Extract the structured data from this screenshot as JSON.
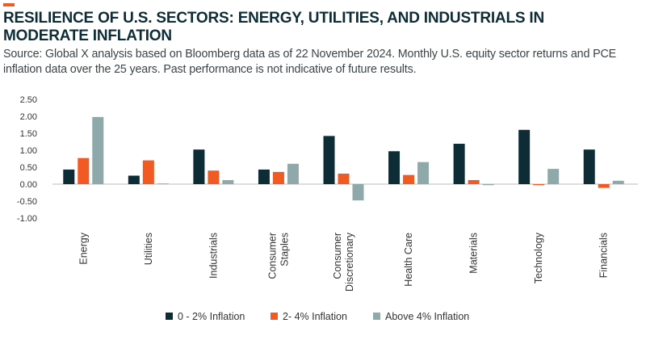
{
  "header": {
    "title": "RESILIENCE OF U.S. SECTORS: ENERGY, UTILITIES, AND INDUSTRIALS IN MODERATE INFLATION",
    "subtitle": "Source: Global X analysis based on Bloomberg data as of 22 November 2024. Monthly U.S. equity sector returns and PCE inflation data over the 25 years. Past performance is not indicative of future results."
  },
  "colors": {
    "accent": "#f15a22",
    "series": [
      "#0d2c36",
      "#f15a22",
      "#8fa9ab"
    ],
    "axis": "#bbbbbb"
  },
  "chart_data": {
    "type": "bar",
    "title": "RESILIENCE OF U.S. SECTORS: ENERGY, UTILITIES, AND INDUSTRIALS IN MODERATE INFLATION",
    "xlabel": "",
    "ylabel": "",
    "ylim": [
      -1.0,
      2.5
    ],
    "yticks": [
      "2.50",
      "2.00",
      "1.50",
      "1.00",
      "0.50",
      "0.00",
      "-0.50",
      "-1.00"
    ],
    "ytick_values": [
      2.5,
      2.0,
      1.5,
      1.0,
      0.5,
      0.0,
      -0.5,
      -1.0
    ],
    "grid": false,
    "legend_position": "bottom",
    "categories": [
      [
        "Energy"
      ],
      [
        "Utilities"
      ],
      [
        "Industrials"
      ],
      [
        "Consumer",
        "Staples"
      ],
      [
        "Consumer",
        "Discretionary"
      ],
      [
        "Health Care"
      ],
      [
        "Materials"
      ],
      [
        "Technology"
      ],
      [
        "Financials"
      ]
    ],
    "series": [
      {
        "name": "0 - 2% Inflation",
        "values": [
          0.43,
          0.25,
          1.02,
          0.43,
          1.42,
          0.97,
          1.19,
          1.6,
          1.02
        ]
      },
      {
        "name": "2- 4% Inflation",
        "values": [
          0.77,
          0.7,
          0.4,
          0.36,
          0.31,
          0.27,
          0.12,
          -0.03,
          -0.11
        ]
      },
      {
        "name": "Above 4% Inflation",
        "values": [
          1.98,
          0.02,
          0.12,
          0.6,
          -0.48,
          0.65,
          -0.03,
          0.45,
          0.1
        ]
      }
    ]
  }
}
